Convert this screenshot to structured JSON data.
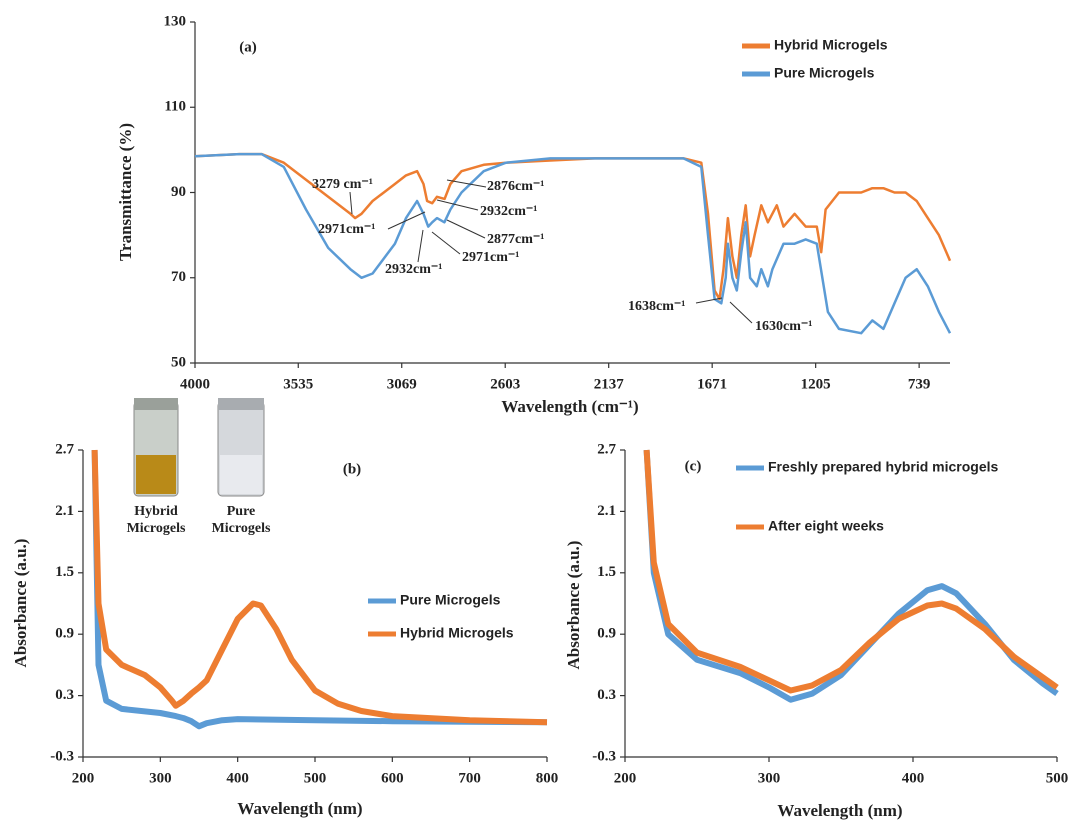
{
  "chart_data": [
    {
      "type": "line",
      "label": "(a)",
      "x_label": "Wavelength (cm⁻¹)",
      "y_label": "Transmittance (%)",
      "xlim": [
        4000,
        600
      ],
      "xticks": [
        4000,
        3535,
        3069,
        2603,
        2137,
        1671,
        1205,
        739
      ],
      "ylim": [
        50,
        130
      ],
      "yticks": [
        50,
        70,
        90,
        110,
        130
      ],
      "grid": false,
      "legend": "upper right",
      "annotations": [
        "3279 cm⁻¹",
        "2876cm⁻¹",
        "2932cm⁻¹",
        "2971cm⁻¹",
        "2877cm⁻¹",
        "2971cm⁻¹",
        "2932cm⁻¹",
        "1638cm⁻¹",
        "1630cm⁻¹"
      ],
      "series": [
        {
          "name": "Hybrid Microgels",
          "color": "#ed7d31",
          "x": [
            4000,
            3800,
            3700,
            3600,
            3500,
            3400,
            3350,
            3300,
            3279,
            3250,
            3200,
            3150,
            3100,
            3050,
            3000,
            2971,
            2955,
            2932,
            2910,
            2876,
            2850,
            2800,
            2700,
            2600,
            2400,
            2200,
            2000,
            1800,
            1720,
            1690,
            1660,
            1638,
            1620,
            1600,
            1580,
            1560,
            1540,
            1520,
            1500,
            1480,
            1450,
            1420,
            1380,
            1350,
            1300,
            1250,
            1200,
            1180,
            1160,
            1100,
            1000,
            950,
            900,
            850,
            800,
            750,
            700,
            650,
            600
          ],
          "values": [
            98.5,
            99,
            99,
            97,
            93,
            89,
            87,
            85,
            84,
            85,
            88,
            90,
            92,
            94,
            95,
            92,
            88,
            87.5,
            89,
            88.5,
            92,
            95,
            96.5,
            97,
            97.5,
            98,
            98,
            98,
            97,
            85,
            67,
            65,
            72,
            84,
            75,
            70,
            80,
            87,
            75,
            80,
            87,
            83,
            87,
            82,
            85,
            82,
            82,
            76,
            86,
            90,
            90,
            91,
            91,
            90,
            90,
            88,
            84,
            80,
            74
          ]
        },
        {
          "name": "Pure Microgels",
          "color": "#5b9bd5",
          "x": [
            4000,
            3800,
            3700,
            3600,
            3500,
            3400,
            3300,
            3250,
            3200,
            3100,
            3050,
            3000,
            2971,
            2950,
            2932,
            2910,
            2877,
            2850,
            2800,
            2700,
            2600,
            2400,
            2200,
            2000,
            1800,
            1720,
            1690,
            1660,
            1630,
            1610,
            1600,
            1580,
            1560,
            1540,
            1520,
            1500,
            1470,
            1450,
            1420,
            1400,
            1350,
            1300,
            1250,
            1200,
            1150,
            1100,
            1000,
            950,
            900,
            850,
            800,
            750,
            700,
            650,
            600
          ],
          "values": [
            98.5,
            99,
            99,
            96,
            86,
            77,
            72,
            70,
            71,
            78,
            84,
            88,
            85,
            82,
            83,
            84,
            83,
            86,
            90,
            95,
            97,
            98,
            98,
            98,
            98,
            96,
            80,
            65,
            64,
            70,
            78,
            70,
            67,
            76,
            83,
            70,
            68,
            72,
            68,
            72,
            78,
            78,
            79,
            78,
            62,
            58,
            57,
            60,
            58,
            64,
            70,
            72,
            68,
            62,
            57
          ]
        }
      ]
    },
    {
      "type": "line",
      "label": "(b)",
      "x_label": "Wavelength (nm)",
      "y_label": "Absorbance (a.u.)",
      "xlim": [
        200,
        800
      ],
      "xticks": [
        200,
        300,
        400,
        500,
        600,
        700,
        800
      ],
      "ylim": [
        -0.3,
        2.7
      ],
      "yticks": [
        -0.3,
        0.3,
        0.9,
        1.5,
        2.1,
        2.7
      ],
      "grid": false,
      "legend": "center right",
      "vial_labels": [
        [
          "Hybrid",
          "Microgels"
        ],
        [
          "Pure",
          "Microgels"
        ]
      ],
      "series": [
        {
          "name": "Pure Microgels",
          "color": "#5b9bd5",
          "x": [
            215,
            220,
            230,
            250,
            300,
            320,
            330,
            340,
            350,
            360,
            380,
            400,
            500,
            600,
            800
          ],
          "values": [
            2.7,
            0.6,
            0.25,
            0.17,
            0.13,
            0.1,
            0.08,
            0.05,
            0.0,
            0.03,
            0.06,
            0.07,
            0.06,
            0.05,
            0.04
          ]
        },
        {
          "name": "Hybrid Microgels",
          "color": "#ed7d31",
          "x": [
            215,
            220,
            230,
            250,
            280,
            300,
            315,
            320,
            330,
            340,
            350,
            360,
            380,
            400,
            420,
            430,
            450,
            470,
            500,
            530,
            560,
            600,
            700,
            800
          ],
          "values": [
            2.7,
            1.2,
            0.75,
            0.6,
            0.5,
            0.38,
            0.25,
            0.2,
            0.25,
            0.32,
            0.38,
            0.45,
            0.75,
            1.05,
            1.2,
            1.18,
            0.95,
            0.65,
            0.35,
            0.22,
            0.15,
            0.1,
            0.06,
            0.04
          ]
        }
      ]
    },
    {
      "type": "line",
      "label": "(c)",
      "x_label": "Wavelength (nm)",
      "y_label": "Absorbance (a.u.)",
      "xlim": [
        200,
        500
      ],
      "xticks": [
        200,
        300,
        400,
        500
      ],
      "ylim": [
        -0.3,
        2.7
      ],
      "yticks": [
        -0.3,
        0.3,
        0.9,
        1.5,
        2.1,
        2.7
      ],
      "grid": false,
      "legend": "upper left",
      "series": [
        {
          "name": "Freshly prepared hybrid microgels",
          "color": "#5b9bd5",
          "x": [
            215,
            220,
            230,
            250,
            280,
            300,
            315,
            330,
            350,
            370,
            390,
            410,
            420,
            430,
            450,
            470,
            490,
            500
          ],
          "values": [
            2.7,
            1.5,
            0.9,
            0.65,
            0.52,
            0.38,
            0.26,
            0.32,
            0.5,
            0.8,
            1.1,
            1.33,
            1.37,
            1.3,
            1.0,
            0.65,
            0.42,
            0.32
          ]
        },
        {
          "name": "After eight weeks",
          "color": "#ed7d31",
          "x": [
            215,
            220,
            230,
            250,
            280,
            300,
            315,
            330,
            350,
            370,
            390,
            410,
            420,
            430,
            450,
            470,
            490,
            500
          ],
          "values": [
            2.7,
            1.6,
            1.0,
            0.72,
            0.58,
            0.45,
            0.35,
            0.4,
            0.55,
            0.82,
            1.05,
            1.18,
            1.2,
            1.15,
            0.95,
            0.68,
            0.48,
            0.38
          ]
        }
      ]
    }
  ]
}
